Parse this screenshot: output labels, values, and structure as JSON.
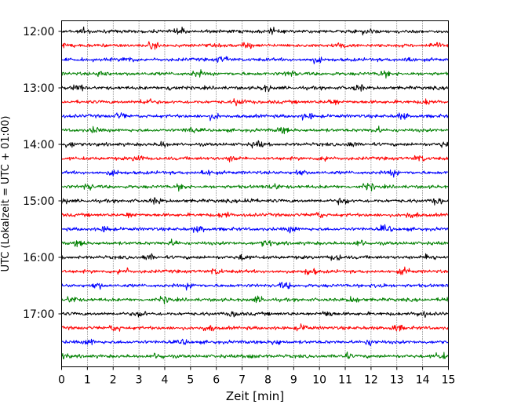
{
  "chart_data": {
    "type": "line",
    "title": "",
    "xlabel": "Zeit  [min]",
    "ylabel": "UTC (Lokalzeit = UTC + 01:00)",
    "xlim": [
      0,
      15
    ],
    "x_ticks": [
      "0",
      "1",
      "2",
      "3",
      "4",
      "5",
      "6",
      "7",
      "8",
      "9",
      "10",
      "11",
      "12",
      "13",
      "14",
      "15"
    ],
    "y_ticks": [
      "12:00",
      "13:00",
      "14:00",
      "15:00",
      "16:00",
      "17:00"
    ],
    "grid": "vertical dotted lines at each minute",
    "trace_interval_minutes": 15,
    "traces": [
      {
        "start": "12:00",
        "color": "#000000"
      },
      {
        "start": "12:15",
        "color": "#ff0000"
      },
      {
        "start": "12:30",
        "color": "#0000ff"
      },
      {
        "start": "12:45",
        "color": "#008000"
      },
      {
        "start": "13:00",
        "color": "#000000"
      },
      {
        "start": "13:15",
        "color": "#ff0000"
      },
      {
        "start": "13:30",
        "color": "#0000ff"
      },
      {
        "start": "13:45",
        "color": "#008000"
      },
      {
        "start": "14:00",
        "color": "#000000"
      },
      {
        "start": "14:15",
        "color": "#ff0000"
      },
      {
        "start": "14:30",
        "color": "#0000ff"
      },
      {
        "start": "14:45",
        "color": "#008000"
      },
      {
        "start": "15:00",
        "color": "#000000"
      },
      {
        "start": "15:15",
        "color": "#ff0000"
      },
      {
        "start": "15:30",
        "color": "#0000ff"
      },
      {
        "start": "15:45",
        "color": "#008000"
      },
      {
        "start": "16:00",
        "color": "#000000"
      },
      {
        "start": "16:15",
        "color": "#ff0000"
      },
      {
        "start": "16:30",
        "color": "#0000ff"
      },
      {
        "start": "16:45",
        "color": "#008000"
      },
      {
        "start": "17:00",
        "color": "#000000"
      },
      {
        "start": "17:15",
        "color": "#ff0000"
      },
      {
        "start": "17:30",
        "color": "#0000ff"
      },
      {
        "start": "17:45",
        "color": "#008000"
      }
    ]
  }
}
